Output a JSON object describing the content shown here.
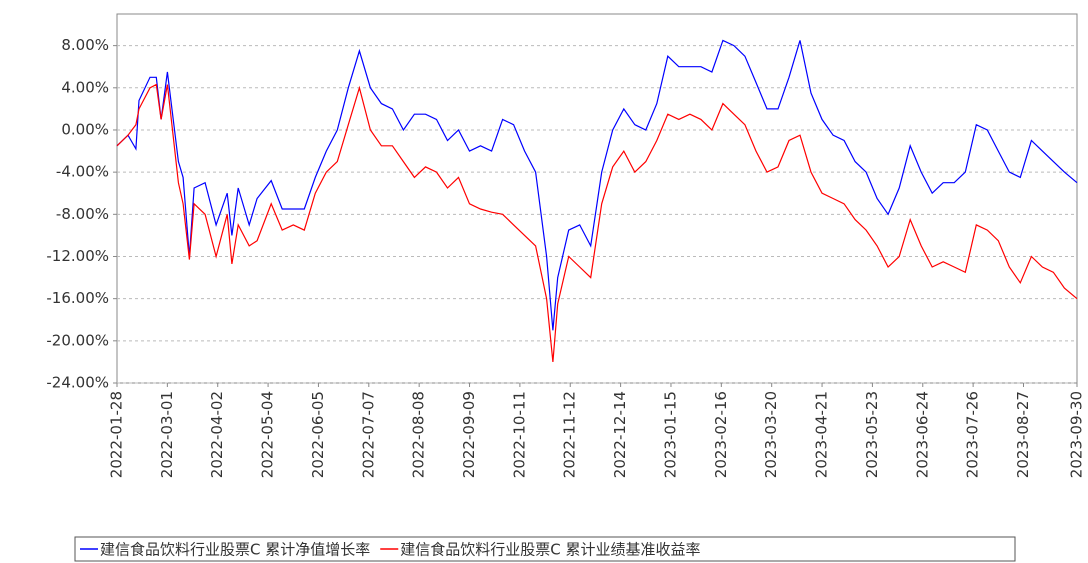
{
  "chart_data": {
    "type": "line",
    "x": [
      "2022-01-28",
      "2022-02-04",
      "2022-02-09",
      "2022-02-11",
      "2022-02-18",
      "2022-02-22",
      "2022-02-25",
      "2022-03-01",
      "2022-03-08",
      "2022-03-11",
      "2022-03-15",
      "2022-03-18",
      "2022-03-25",
      "2022-04-01",
      "2022-04-08",
      "2022-04-11",
      "2022-04-15",
      "2022-04-22",
      "2022-04-27",
      "2022-05-06",
      "2022-05-13",
      "2022-05-20",
      "2022-05-27",
      "2022-06-03",
      "2022-06-10",
      "2022-06-17",
      "2022-06-24",
      "2022-07-01",
      "2022-07-08",
      "2022-07-15",
      "2022-07-22",
      "2022-07-29",
      "2022-08-05",
      "2022-08-12",
      "2022-08-19",
      "2022-08-26",
      "2022-09-02",
      "2022-09-09",
      "2022-09-16",
      "2022-09-23",
      "2022-09-30",
      "2022-10-07",
      "2022-10-14",
      "2022-10-21",
      "2022-10-28",
      "2022-11-01",
      "2022-11-04",
      "2022-11-11",
      "2022-11-18",
      "2022-11-25",
      "2022-12-02",
      "2022-12-09",
      "2022-12-16",
      "2022-12-23",
      "2022-12-30",
      "2023-01-06",
      "2023-01-13",
      "2023-01-20",
      "2023-01-27",
      "2023-02-03",
      "2023-02-10",
      "2023-02-17",
      "2023-02-24",
      "2023-03-03",
      "2023-03-10",
      "2023-03-17",
      "2023-03-24",
      "2023-03-31",
      "2023-04-07",
      "2023-04-14",
      "2023-04-21",
      "2023-04-28",
      "2023-05-05",
      "2023-05-12",
      "2023-05-19",
      "2023-05-26",
      "2023-06-02",
      "2023-06-09",
      "2023-06-16",
      "2023-06-23",
      "2023-06-30",
      "2023-07-07",
      "2023-07-14",
      "2023-07-21",
      "2023-07-28",
      "2023-08-04",
      "2023-08-11",
      "2023-08-18",
      "2023-08-25",
      "2023-09-01",
      "2023-09-08",
      "2023-09-15",
      "2023-09-22",
      "2023-09-30"
    ],
    "series": [
      {
        "name": "建信食品饮料行业股票C 累计净值增长率",
        "color": "#0000ff",
        "values": [
          -1.5,
          -0.5,
          -1.8,
          2.8,
          5.0,
          5.0,
          1.0,
          5.5,
          -3.0,
          -4.5,
          -12.0,
          -5.5,
          -5.0,
          -9.0,
          -6.0,
          -10.0,
          -5.5,
          -9.0,
          -6.5,
          -4.8,
          -7.5,
          -7.5,
          -7.5,
          -4.5,
          -2.0,
          0.0,
          4.0,
          7.5,
          4.0,
          2.5,
          2.0,
          0.0,
          1.5,
          1.5,
          1.0,
          -1.0,
          0.0,
          -2.0,
          -1.5,
          -2.0,
          1.0,
          0.5,
          -2.0,
          -4.0,
          -12.0,
          -19.0,
          -14.0,
          -9.5,
          -9.0,
          -11.0,
          -4.0,
          0.0,
          2.0,
          0.5,
          0.0,
          2.5,
          7.0,
          6.0,
          6.0,
          6.0,
          5.5,
          8.5,
          8.0,
          7.0,
          4.5,
          2.0,
          2.0,
          5.0,
          8.5,
          3.5,
          1.0,
          -0.5,
          -1.0,
          -3.0,
          -4.0,
          -6.5,
          -8.0,
          -5.5,
          -1.5,
          -4.0,
          -6.0,
          -5.0,
          -5.0,
          -4.0,
          0.5,
          0.0,
          -2.0,
          -4.0,
          -4.5,
          -1.0,
          -2.0,
          -3.0,
          -4.0,
          -5.0
        ]
      },
      {
        "name": "建信食品饮料行业股票C 累计业绩基准收益率",
        "color": "#ff0000",
        "values": [
          -1.5,
          -0.5,
          0.5,
          2.0,
          4.0,
          4.3,
          1.0,
          4.3,
          -5.0,
          -7.0,
          -12.3,
          -7.0,
          -8.0,
          -12.0,
          -8.0,
          -12.7,
          -9.0,
          -11.0,
          -10.5,
          -7.0,
          -9.5,
          -9.0,
          -9.5,
          -6.0,
          -4.0,
          -3.0,
          0.5,
          4.0,
          0.0,
          -1.5,
          -1.5,
          -3.0,
          -4.5,
          -3.5,
          -4.0,
          -5.5,
          -4.5,
          -7.0,
          -7.5,
          -7.8,
          -8.0,
          -9.0,
          -10.0,
          -11.0,
          -16.0,
          -22.0,
          -16.5,
          -12.0,
          -13.0,
          -14.0,
          -7.0,
          -3.5,
          -2.0,
          -4.0,
          -3.0,
          -1.0,
          1.5,
          1.0,
          1.5,
          1.0,
          0.0,
          2.5,
          1.5,
          0.5,
          -2.0,
          -4.0,
          -3.5,
          -1.0,
          -0.5,
          -4.0,
          -6.0,
          -6.5,
          -7.0,
          -8.5,
          -9.5,
          -11.0,
          -13.0,
          -12.0,
          -8.5,
          -11.0,
          -13.0,
          -12.5,
          -13.0,
          -13.5,
          -9.0,
          -9.5,
          -10.5,
          -13.0,
          -14.5,
          -12.0,
          -13.0,
          -13.5,
          -15.0,
          -16.0
        ]
      }
    ],
    "ylim": [
      -24,
      11
    ],
    "yticks": [
      {
        "value": -24,
        "label": "-24.00%"
      },
      {
        "value": -20,
        "label": "-20.00%"
      },
      {
        "value": -16,
        "label": "-16.00%"
      },
      {
        "value": -12,
        "label": "-12.00%"
      },
      {
        "value": -8,
        "label": "-8.00%"
      },
      {
        "value": -4,
        "label": "-4.00%"
      },
      {
        "value": 0,
        "label": "0.00%"
      },
      {
        "value": 4,
        "label": "4.00%"
      },
      {
        "value": 8,
        "label": "8.00%"
      }
    ],
    "xlim": [
      "2022-01-28",
      "2023-09-30"
    ],
    "xticks": [
      "2022-01-28",
      "2022-03-01",
      "2022-04-02",
      "2022-05-04",
      "2022-06-05",
      "2022-07-07",
      "2022-08-08",
      "2022-09-09",
      "2022-10-11",
      "2022-11-12",
      "2022-12-14",
      "2023-01-15",
      "2023-02-16",
      "2023-03-20",
      "2023-04-21",
      "2023-05-23",
      "2023-06-24",
      "2023-07-26",
      "2023-08-27",
      "2023-09-30"
    ],
    "grid": true
  }
}
